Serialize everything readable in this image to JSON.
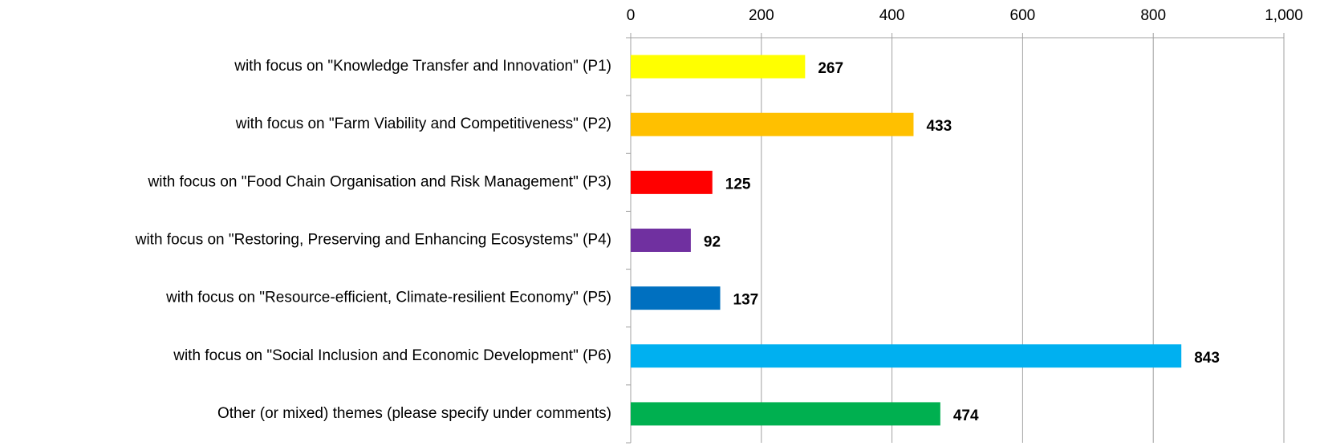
{
  "chart_data": {
    "type": "bar",
    "orientation": "horizontal",
    "categories": [
      "with focus on \"Knowledge Transfer and Innovation\" (P1)",
      "with focus on \"Farm Viability and Competitiveness\" (P2)",
      "with focus on \"Food Chain Organisation and Risk Management\" (P3)",
      "with focus on \"Restoring, Preserving and Enhancing Ecosystems\" (P4)",
      "with focus on \"Resource-efficient, Climate-resilient Economy\" (P5)",
      "with focus on \"Social Inclusion and Economic Development\" (P6)",
      "Other (or mixed) themes (please specify under comments)"
    ],
    "values": [
      267,
      433,
      125,
      92,
      137,
      843,
      474
    ],
    "colors": [
      "#ffff00",
      "#ffc000",
      "#ff0000",
      "#7030a0",
      "#0070c0",
      "#00b0f0",
      "#00b050"
    ],
    "xlim": [
      0,
      1000
    ],
    "xticks": [
      0,
      200,
      400,
      600,
      800,
      {
        "value": 1000,
        "label": "1,000"
      }
    ],
    "grid": true
  }
}
